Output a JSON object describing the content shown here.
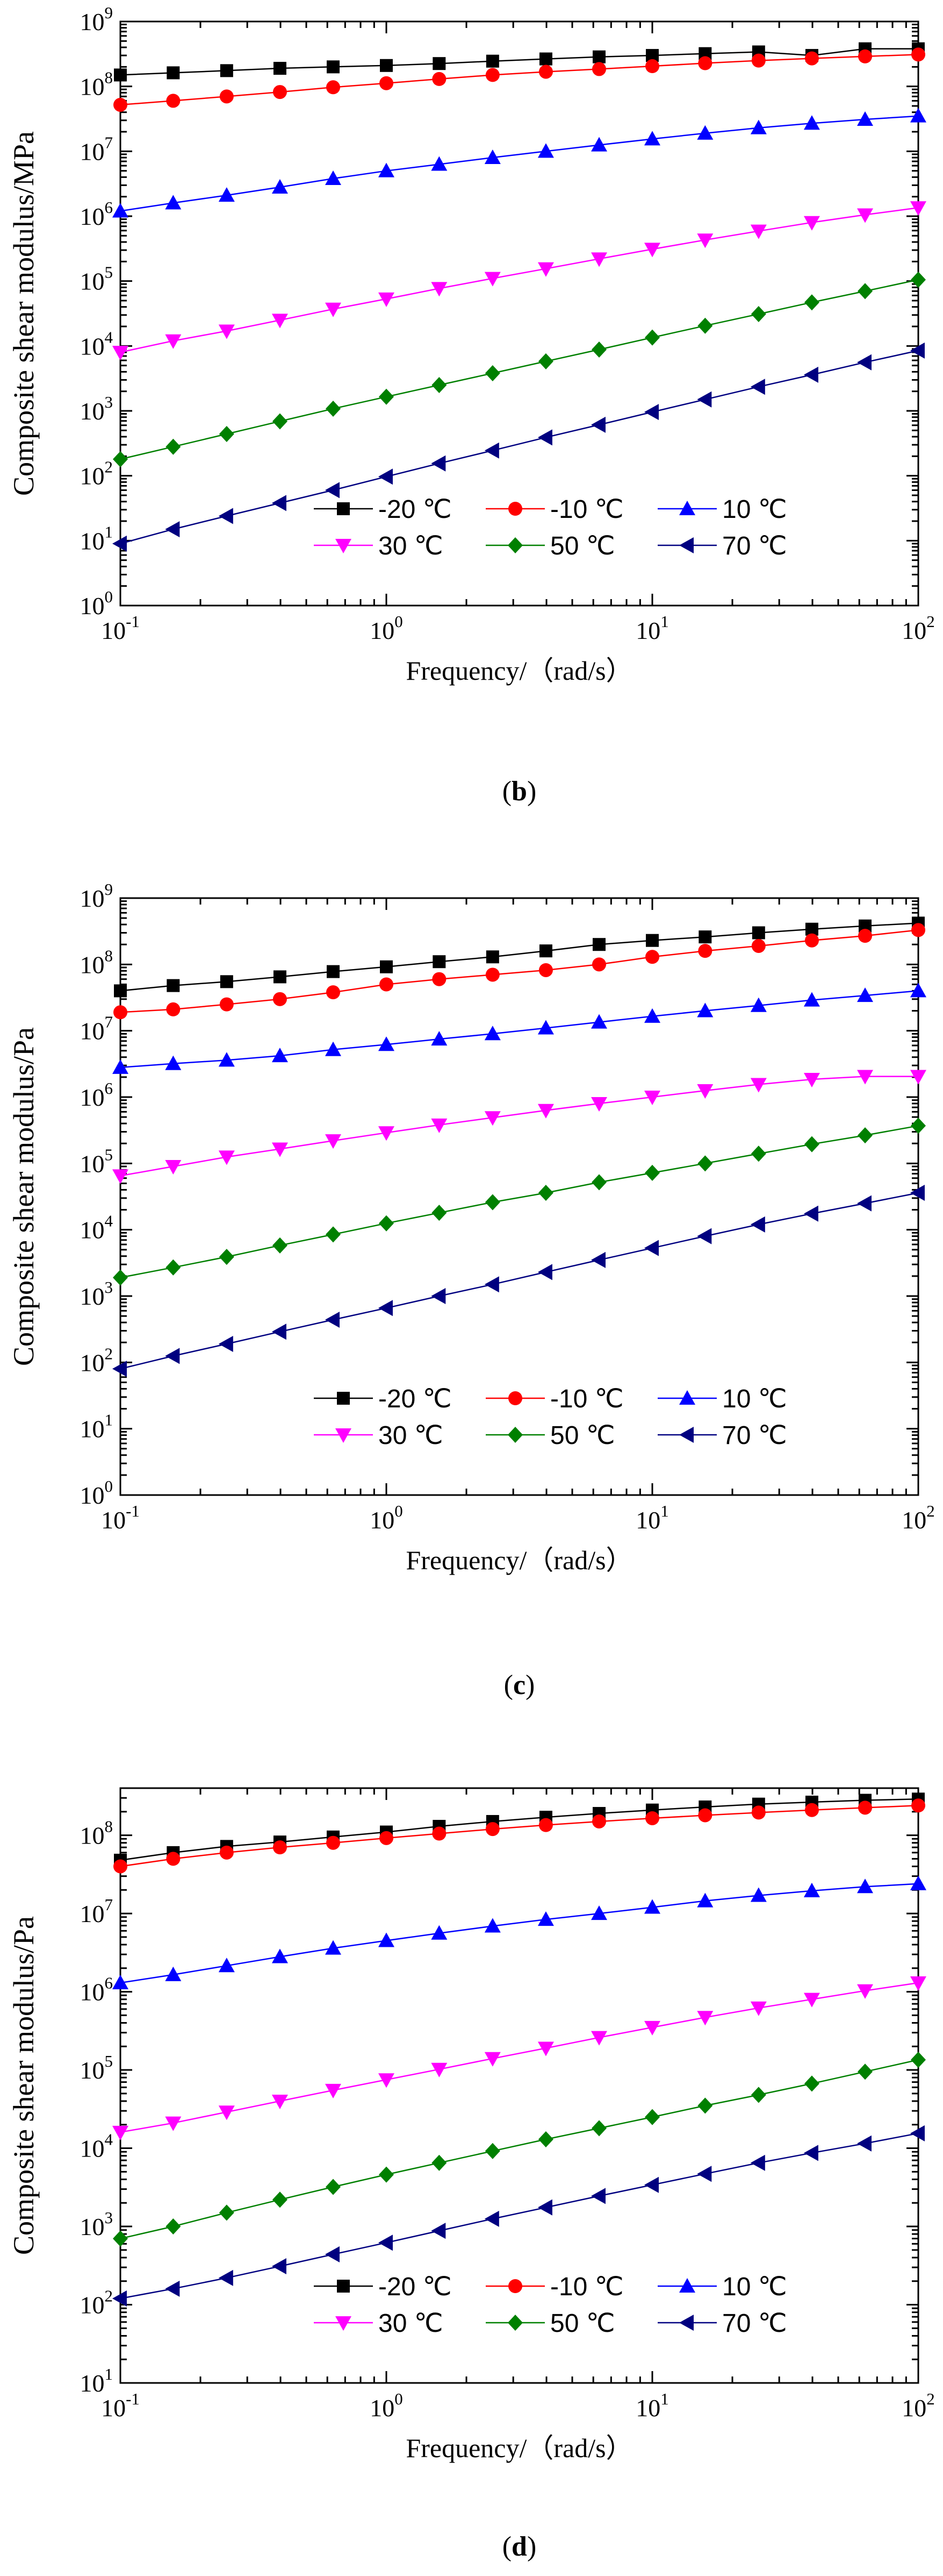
{
  "chart_data": [
    {
      "type": "line",
      "panel_label": "(b)",
      "panel_letter": "b",
      "xlabel": "Frequency/（rad/s）",
      "ylabel": "Composite shear modulus/MPa",
      "xscale": "log",
      "yscale": "log",
      "xlim": [
        0.1,
        100
      ],
      "ylim": [
        1,
        1000000000
      ],
      "x_ticks": [
        {
          "base": "10",
          "exp": "-1"
        },
        {
          "base": "10",
          "exp": "0"
        },
        {
          "base": "10",
          "exp": "1"
        },
        {
          "base": "10",
          "exp": "2"
        }
      ],
      "y_ticks": [
        {
          "base": "10",
          "exp": "0"
        },
        {
          "base": "10",
          "exp": "1"
        },
        {
          "base": "10",
          "exp": "2"
        },
        {
          "base": "10",
          "exp": "3"
        },
        {
          "base": "10",
          "exp": "4"
        },
        {
          "base": "10",
          "exp": "5"
        },
        {
          "base": "10",
          "exp": "6"
        },
        {
          "base": "10",
          "exp": "7"
        },
        {
          "base": "10",
          "exp": "8"
        },
        {
          "base": "10",
          "exp": "9"
        }
      ],
      "legend_position": "bottom-right",
      "series": [
        {
          "name": "-20 ℃",
          "label": "-20 ℃",
          "color": "#000000",
          "marker": "square",
          "x": [
            0.1,
            0.158,
            0.251,
            0.398,
            0.631,
            1,
            1.58,
            2.51,
            3.98,
            6.31,
            10,
            15.8,
            25.1,
            39.8,
            63.1,
            100
          ],
          "values": [
            150000000,
            162000000,
            175000000,
            190000000,
            200000000,
            210000000,
            225000000,
            245000000,
            265000000,
            285000000,
            300000000,
            320000000,
            340000000,
            300000000,
            380000000,
            380000000
          ]
        },
        {
          "name": "-10 ℃",
          "label": "-10 ℃",
          "color": "#ff0000",
          "marker": "circle",
          "x": [
            0.1,
            0.158,
            0.251,
            0.398,
            0.631,
            1,
            1.58,
            2.51,
            3.98,
            6.31,
            10,
            15.8,
            25.1,
            39.8,
            63.1,
            100
          ],
          "values": [
            52000000,
            60000000,
            70000000,
            82000000,
            97000000,
            112000000,
            130000000,
            150000000,
            168000000,
            185000000,
            205000000,
            228000000,
            250000000,
            270000000,
            290000000,
            310000000
          ]
        },
        {
          "name": "10 ℃",
          "label": "10 ℃",
          "color": "#0000ff",
          "marker": "triangle-up",
          "x": [
            0.1,
            0.158,
            0.251,
            0.398,
            0.631,
            1,
            1.58,
            2.51,
            3.98,
            6.31,
            10,
            15.8,
            25.1,
            39.8,
            63.1,
            100
          ],
          "values": [
            1200000,
            1600000,
            2100000,
            2800000,
            3800000,
            5000000,
            6300000,
            8000000,
            10000000,
            12500000,
            15500000,
            19000000,
            23000000,
            27000000,
            31000000,
            35000000
          ]
        },
        {
          "name": "30 ℃",
          "label": "30 ℃",
          "color": "#ff00ff",
          "marker": "triangle-down",
          "x": [
            0.1,
            0.158,
            0.251,
            0.398,
            0.631,
            1,
            1.58,
            2.51,
            3.98,
            6.31,
            10,
            15.8,
            25.1,
            39.8,
            63.1,
            100
          ],
          "values": [
            8000,
            12000,
            17000,
            25000,
            37000,
            53000,
            77000,
            110000,
            155000,
            220000,
            310000,
            430000,
            590000,
            800000,
            1050000,
            1350000
          ]
        },
        {
          "name": "50 ℃",
          "label": "50 ℃",
          "color": "#008000",
          "marker": "diamond",
          "x": [
            0.1,
            0.158,
            0.251,
            0.398,
            0.631,
            1,
            1.58,
            2.51,
            3.98,
            6.31,
            10,
            15.8,
            25.1,
            39.8,
            63.1,
            100
          ],
          "values": [
            180,
            280,
            440,
            690,
            1080,
            1650,
            2500,
            3800,
            5800,
            8800,
            13500,
            20500,
            31000,
            47000,
            70000,
            105000
          ]
        },
        {
          "name": "70 ℃",
          "label": "70 ℃",
          "color": "#000080",
          "marker": "triangle-left",
          "x": [
            0.1,
            0.158,
            0.251,
            0.398,
            0.631,
            1,
            1.58,
            2.51,
            3.98,
            6.31,
            10,
            15.8,
            25.1,
            39.8,
            63.1,
            100
          ],
          "values": [
            9,
            15,
            24,
            38,
            60,
            97,
            155,
            245,
            390,
            610,
            960,
            1500,
            2350,
            3600,
            5600,
            8500
          ]
        }
      ]
    },
    {
      "type": "line",
      "panel_label": "(c)",
      "panel_letter": "c",
      "xlabel": "Frequency/（rad/s）",
      "ylabel": "Composite shear modulus/Pa",
      "xscale": "log",
      "yscale": "log",
      "xlim": [
        0.1,
        100
      ],
      "ylim": [
        1,
        1000000000
      ],
      "x_ticks": [
        {
          "base": "10",
          "exp": "-1"
        },
        {
          "base": "10",
          "exp": "0"
        },
        {
          "base": "10",
          "exp": "1"
        },
        {
          "base": "10",
          "exp": "2"
        }
      ],
      "y_ticks": [
        {
          "base": "10",
          "exp": "0"
        },
        {
          "base": "10",
          "exp": "1"
        },
        {
          "base": "10",
          "exp": "2"
        },
        {
          "base": "10",
          "exp": "3"
        },
        {
          "base": "10",
          "exp": "4"
        },
        {
          "base": "10",
          "exp": "5"
        },
        {
          "base": "10",
          "exp": "6"
        },
        {
          "base": "10",
          "exp": "7"
        },
        {
          "base": "10",
          "exp": "8"
        },
        {
          "base": "10",
          "exp": "9"
        }
      ],
      "legend_position": "bottom-right",
      "series": [
        {
          "name": "-20 ℃",
          "label": "-20 ℃",
          "color": "#000000",
          "marker": "square",
          "x": [
            0.1,
            0.158,
            0.251,
            0.398,
            0.631,
            1,
            1.58,
            2.51,
            3.98,
            6.31,
            10,
            15.8,
            25.1,
            39.8,
            63.1,
            100
          ],
          "values": [
            40000000,
            48000000,
            55000000,
            65000000,
            78000000,
            92000000,
            110000000,
            130000000,
            160000000,
            200000000,
            230000000,
            260000000,
            300000000,
            340000000,
            380000000,
            420000000
          ]
        },
        {
          "name": "-10 ℃",
          "label": "-10 ℃",
          "color": "#ff0000",
          "marker": "circle",
          "x": [
            0.1,
            0.158,
            0.251,
            0.398,
            0.631,
            1,
            1.58,
            2.51,
            3.98,
            6.31,
            10,
            15.8,
            25.1,
            39.8,
            63.1,
            100
          ],
          "values": [
            19000000,
            21000000,
            25000000,
            30000000,
            38000000,
            50000000,
            60000000,
            70000000,
            82000000,
            100000000,
            130000000,
            160000000,
            190000000,
            230000000,
            270000000,
            330000000
          ]
        },
        {
          "name": "10 ℃",
          "label": "10 ℃",
          "color": "#0000ff",
          "marker": "triangle-up",
          "x": [
            0.1,
            0.158,
            0.251,
            0.398,
            0.631,
            1,
            1.58,
            2.51,
            3.98,
            6.31,
            10,
            15.8,
            25.1,
            39.8,
            63.1,
            100
          ],
          "values": [
            2800000,
            3200000,
            3600000,
            4200000,
            5200000,
            6200000,
            7500000,
            9000000,
            11000000,
            13500000,
            16500000,
            20000000,
            24000000,
            29000000,
            34000000,
            40000000
          ]
        },
        {
          "name": "30 ℃",
          "label": "30 ℃",
          "color": "#ff00ff",
          "marker": "triangle-down",
          "x": [
            0.1,
            0.158,
            0.251,
            0.398,
            0.631,
            1,
            1.58,
            2.51,
            3.98,
            6.31,
            10,
            15.8,
            25.1,
            39.8,
            63.1,
            100
          ],
          "values": [
            65000,
            90000,
            125000,
            165000,
            220000,
            290000,
            380000,
            490000,
            630000,
            800000,
            1000000,
            1250000,
            1550000,
            1850000,
            2050000,
            2050000
          ]
        },
        {
          "name": "50 ℃",
          "label": "50 ℃",
          "color": "#008000",
          "marker": "diamond",
          "x": [
            0.1,
            0.158,
            0.251,
            0.398,
            0.631,
            1,
            1.58,
            2.51,
            3.98,
            6.31,
            10,
            15.8,
            25.1,
            39.8,
            63.1,
            100
          ],
          "values": [
            1900,
            2700,
            3900,
            5800,
            8500,
            12500,
            18000,
            26000,
            36000,
            52000,
            72000,
            100000,
            140000,
            195000,
            265000,
            370000
          ]
        },
        {
          "name": "70 ℃",
          "label": "70 ℃",
          "color": "#000080",
          "marker": "triangle-left",
          "x": [
            0.1,
            0.158,
            0.251,
            0.398,
            0.631,
            1,
            1.58,
            2.51,
            3.98,
            6.31,
            10,
            15.8,
            25.1,
            39.8,
            63.1,
            100
          ],
          "values": [
            80,
            125,
            190,
            290,
            440,
            660,
            1000,
            1500,
            2300,
            3500,
            5300,
            8000,
            12000,
            17500,
            25000,
            36000
          ]
        }
      ]
    },
    {
      "type": "line",
      "panel_label": "(d)",
      "panel_letter": "d",
      "xlabel": "Frequency/（rad/s）",
      "ylabel": "Composite shear modulus/Pa",
      "xscale": "log",
      "yscale": "log",
      "xlim": [
        0.1,
        100
      ],
      "ylim": [
        10,
        400000000
      ],
      "x_ticks": [
        {
          "base": "10",
          "exp": "-1"
        },
        {
          "base": "10",
          "exp": "0"
        },
        {
          "base": "10",
          "exp": "1"
        },
        {
          "base": "10",
          "exp": "2"
        }
      ],
      "y_ticks": [
        {
          "base": "10",
          "exp": "1"
        },
        {
          "base": "10",
          "exp": "2"
        },
        {
          "base": "10",
          "exp": "3"
        },
        {
          "base": "10",
          "exp": "4"
        },
        {
          "base": "10",
          "exp": "5"
        },
        {
          "base": "10",
          "exp": "6"
        },
        {
          "base": "10",
          "exp": "7"
        },
        {
          "base": "10",
          "exp": "8"
        }
      ],
      "legend_position": "bottom-right",
      "series": [
        {
          "name": "-20 ℃",
          "label": "-20 ℃",
          "color": "#000000",
          "marker": "square",
          "x": [
            0.1,
            0.158,
            0.251,
            0.398,
            0.631,
            1,
            1.58,
            2.51,
            3.98,
            6.31,
            10,
            15.8,
            25.1,
            39.8,
            63.1,
            100
          ],
          "values": [
            48000000,
            60000000,
            72000000,
            82000000,
            95000000,
            110000000,
            130000000,
            150000000,
            170000000,
            190000000,
            210000000,
            230000000,
            250000000,
            265000000,
            280000000,
            290000000
          ]
        },
        {
          "name": "-10 ℃",
          "label": "-10 ℃",
          "color": "#ff0000",
          "marker": "circle",
          "x": [
            0.1,
            0.158,
            0.251,
            0.398,
            0.631,
            1,
            1.58,
            2.51,
            3.98,
            6.31,
            10,
            15.8,
            25.1,
            39.8,
            63.1,
            100
          ],
          "values": [
            40000000,
            50000000,
            60000000,
            70000000,
            80000000,
            92000000,
            105000000,
            120000000,
            135000000,
            150000000,
            165000000,
            180000000,
            195000000,
            210000000,
            225000000,
            240000000
          ]
        },
        {
          "name": "10 ℃",
          "label": "10 ℃",
          "color": "#0000ff",
          "marker": "triangle-up",
          "x": [
            0.1,
            0.158,
            0.251,
            0.398,
            0.631,
            1,
            1.58,
            2.51,
            3.98,
            6.31,
            10,
            15.8,
            25.1,
            39.8,
            63.1,
            100
          ],
          "values": [
            1300000,
            1650000,
            2150000,
            2800000,
            3600000,
            4500000,
            5600000,
            6900000,
            8400000,
            10000000,
            12000000,
            14500000,
            17000000,
            19500000,
            22000000,
            24000000
          ]
        },
        {
          "name": "30 ℃",
          "label": "30 ℃",
          "color": "#ff00ff",
          "marker": "triangle-down",
          "x": [
            0.1,
            0.158,
            0.251,
            0.398,
            0.631,
            1,
            1.58,
            2.51,
            3.98,
            6.31,
            10,
            15.8,
            25.1,
            39.8,
            63.1,
            100
          ],
          "values": [
            16000,
            21000,
            29000,
            40000,
            55000,
            75000,
            102000,
            140000,
            190000,
            260000,
            350000,
            470000,
            620000,
            800000,
            1030000,
            1300000
          ]
        },
        {
          "name": "50 ℃",
          "label": "50 ℃",
          "color": "#008000",
          "marker": "diamond",
          "x": [
            0.1,
            0.158,
            0.251,
            0.398,
            0.631,
            1,
            1.58,
            2.51,
            3.98,
            6.31,
            10,
            15.8,
            25.1,
            39.8,
            63.1,
            100
          ],
          "values": [
            700,
            1000,
            1500,
            2200,
            3200,
            4600,
            6500,
            9200,
            13000,
            18000,
            25000,
            35000,
            48000,
            67000,
            95000,
            135000
          ]
        },
        {
          "name": "70 ℃",
          "label": "70 ℃",
          "color": "#000080",
          "marker": "triangle-left",
          "x": [
            0.1,
            0.158,
            0.251,
            0.398,
            0.631,
            1,
            1.58,
            2.51,
            3.98,
            6.31,
            10,
            15.8,
            25.1,
            39.8,
            63.1,
            100
          ],
          "values": [
            120,
            160,
            220,
            310,
            440,
            620,
            880,
            1250,
            1750,
            2450,
            3400,
            4700,
            6500,
            8700,
            11500,
            15500
          ]
        }
      ]
    }
  ]
}
